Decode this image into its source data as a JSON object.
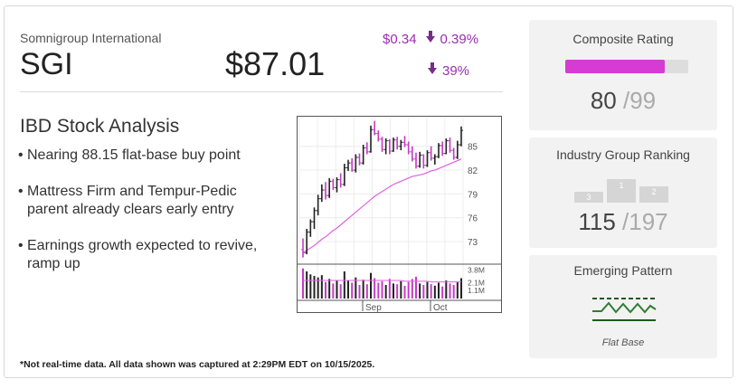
{
  "stock": {
    "company": "Somnigroup International",
    "ticker": "SGI",
    "price": "$87.01",
    "change_amount": "$0.34",
    "change_pct": "0.39%",
    "secondary_pct": "39%"
  },
  "analysis": {
    "title": "IBD Stock Analysis",
    "bullets": [
      "Nearing 88.15 flat-base buy point",
      "Mattress Firm and Tempur-Pedic parent already clears early entry",
      "Earnings growth expected to revive, ramp up"
    ]
  },
  "composite": {
    "title": "Composite Rating",
    "value": "80",
    "max": "/99",
    "fill_pct": 80.8
  },
  "industry": {
    "title": "Industry Group Ranking",
    "value": "115",
    "max": "/197",
    "podium_labels": [
      "3",
      "1",
      "2"
    ]
  },
  "pattern": {
    "title": "Emerging Pattern",
    "name": "Flat Base"
  },
  "footnote": "*Not real-time data. All data shown was captured at 2:29PM EDT on 10/15/2025.",
  "colors": {
    "accent": "#d63cd3",
    "down": "#9b2cb3",
    "ma_line": "#e060e0",
    "pattern_green": "#2e7d32"
  },
  "chart_data": {
    "type": "line",
    "title": "",
    "x_ticks": [
      "Sep",
      "Oct"
    ],
    "y_ticks": [
      73,
      76,
      79,
      82,
      85
    ],
    "ylim": [
      70.5,
      88.5
    ],
    "volume_ticks": [
      "3.8M",
      "2.1M",
      "1.1M"
    ],
    "volume_lim": [
      0,
      4.2
    ],
    "price_ohlc": [
      [
        72.0,
        73.4,
        71.0,
        71.6
      ],
      [
        71.6,
        74.6,
        71.4,
        74.2
      ],
      [
        74.2,
        75.8,
        73.6,
        75.5
      ],
      [
        75.5,
        77.3,
        74.6,
        76.9
      ],
      [
        76.9,
        78.9,
        76.3,
        78.4
      ],
      [
        78.4,
        80.2,
        78.0,
        79.5
      ],
      [
        79.5,
        80.5,
        78.3,
        78.8
      ],
      [
        78.8,
        81.0,
        78.5,
        80.6
      ],
      [
        80.6,
        80.9,
        79.5,
        79.8
      ],
      [
        79.8,
        81.1,
        79.2,
        80.8
      ],
      [
        80.8,
        81.6,
        79.8,
        80.2
      ],
      [
        80.2,
        82.8,
        80.0,
        82.3
      ],
      [
        82.3,
        83.3,
        81.9,
        82.9
      ],
      [
        82.9,
        83.5,
        81.8,
        82.0
      ],
      [
        82.0,
        84.0,
        81.7,
        83.6
      ],
      [
        83.6,
        84.1,
        82.6,
        82.9
      ],
      [
        82.9,
        85.2,
        82.7,
        84.8
      ],
      [
        84.8,
        85.5,
        84.0,
        84.3
      ],
      [
        84.3,
        87.6,
        84.2,
        87.1
      ],
      [
        87.1,
        88.2,
        86.4,
        86.6
      ],
      [
        86.6,
        87.0,
        85.6,
        85.9
      ],
      [
        85.9,
        86.2,
        84.3,
        84.6
      ],
      [
        84.6,
        86.0,
        84.0,
        85.7
      ],
      [
        85.7,
        85.9,
        84.0,
        84.4
      ],
      [
        84.4,
        86.1,
        84.3,
        85.8
      ],
      [
        85.8,
        86.2,
        84.6,
        85.0
      ],
      [
        85.0,
        85.8,
        84.5,
        85.5
      ],
      [
        85.5,
        86.3,
        84.9,
        85.2
      ],
      [
        85.2,
        85.6,
        84.0,
        84.3
      ],
      [
        84.3,
        85.0,
        83.1,
        83.4
      ],
      [
        83.4,
        84.2,
        82.2,
        82.5
      ],
      [
        82.5,
        84.3,
        82.3,
        83.9
      ],
      [
        83.9,
        84.0,
        82.2,
        82.6
      ],
      [
        82.6,
        84.5,
        82.4,
        84.2
      ],
      [
        84.2,
        85.0,
        83.2,
        83.5
      ],
      [
        83.5,
        84.0,
        82.7,
        83.7
      ],
      [
        83.7,
        85.4,
        83.5,
        85.1
      ],
      [
        85.1,
        85.6,
        83.8,
        84.1
      ],
      [
        84.1,
        86.0,
        84.0,
        85.7
      ],
      [
        85.7,
        86.1,
        84.2,
        84.5
      ],
      [
        84.5,
        84.8,
        83.3,
        83.6
      ],
      [
        83.6,
        85.7,
        83.4,
        85.2
      ],
      [
        85.2,
        87.5,
        85.0,
        87.0
      ]
    ],
    "moving_average": [
      71.6,
      71.9,
      72.2,
      72.5,
      72.9,
      73.3,
      73.6,
      74.0,
      74.4,
      74.7,
      75.1,
      75.5,
      75.9,
      76.3,
      76.7,
      77.1,
      77.5,
      77.9,
      78.3,
      78.7,
      79.0,
      79.3,
      79.6,
      79.9,
      80.2,
      80.4,
      80.6,
      80.8,
      81.0,
      81.2,
      81.3,
      81.4,
      81.5,
      81.7,
      81.9,
      82.0,
      82.2,
      82.4,
      82.6,
      82.8,
      83.0,
      83.2,
      83.4
    ],
    "volume": [
      4.0,
      3.6,
      3.2,
      3.0,
      2.8,
      3.1,
      2.2,
      2.6,
      2.0,
      2.4,
      1.9,
      3.6,
      2.4,
      2.1,
      2.8,
      1.8,
      2.5,
      1.9,
      3.4,
      2.7,
      2.1,
      2.3,
      1.8,
      2.6,
      2.0,
      1.9,
      2.3,
      1.7,
      2.2,
      2.6,
      2.9,
      2.0,
      1.8,
      2.2,
      1.9,
      1.7,
      2.1,
      1.6,
      2.4,
      2.0,
      1.8,
      2.2,
      2.7
    ],
    "volume_avg": [
      2.4,
      2.4,
      2.4,
      2.4,
      2.4,
      2.4,
      2.4,
      2.4,
      2.4,
      2.4,
      2.4,
      2.4,
      2.4,
      2.4,
      2.4,
      2.4,
      2.4,
      2.4,
      2.4,
      2.4,
      2.4,
      2.4,
      2.4,
      2.4,
      2.4,
      2.4,
      2.4,
      2.3,
      2.3,
      2.3,
      2.3,
      2.3,
      2.3,
      2.3,
      2.2,
      2.2,
      2.2,
      2.2,
      2.2,
      2.2,
      2.2,
      2.2,
      2.2
    ]
  }
}
